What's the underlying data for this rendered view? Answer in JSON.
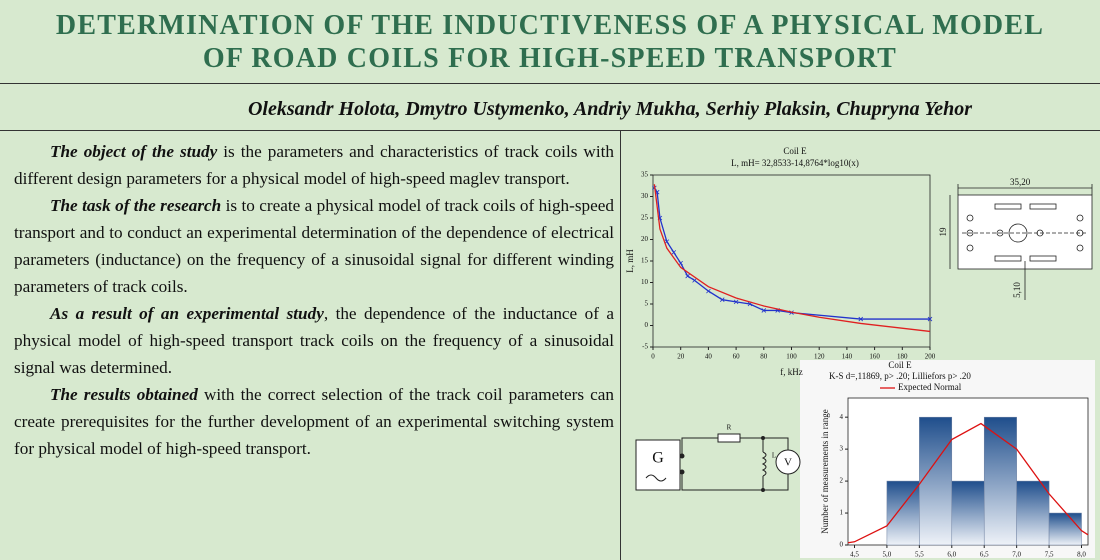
{
  "header": {
    "title_lines": [
      "DETERMINATION OF THE INDUCTIVENESS OF A PHYSICAL MODEL",
      "OF ROAD COILS FOR HIGH-SPEED TRANSPORT"
    ],
    "authors": "Oleksandr Holota, Dmytro Ustymenko, Andriy Mukha, Serhiy Plaksin, Chupryna Yehor"
  },
  "paragraphs": [
    {
      "lead": "The object of the study",
      "text": " is the parameters and characteristics of track coils with different design parameters for a physical model of high-speed maglev transport."
    },
    {
      "lead": "The task of the research",
      "text": " is to create a physical model of track coils of high-speed transport and to conduct an experimental determination of the dependence of electrical parameters (inductance) on the frequency of a sinusoidal signal for different winding parameters of track coils."
    },
    {
      "lead": "As a result of an experimental study",
      "text": ", the dependence of the inductance of a physical model of high-speed transport track coils on the frequency of a sinusoidal signal was determined."
    },
    {
      "lead": "The results obtained",
      "text": " with the correct selection of the track coil parameters can create prerequisites for the further development of an experimental switching system for physical model of high-speed transport."
    }
  ],
  "chart_data": [
    {
      "type": "line",
      "title": "Coil E",
      "subtitle": "L, mH= 32,8533-14,8764*log10(x)",
      "xlabel": "f, kHz",
      "ylabel": "L, mH",
      "xlim": [
        0,
        200
      ],
      "ylim": [
        -5,
        35
      ],
      "xticks": [
        0,
        20,
        40,
        60,
        80,
        100,
        120,
        140,
        160,
        180,
        200
      ],
      "yticks": [
        -5,
        0,
        5,
        10,
        15,
        20,
        25,
        30,
        35
      ],
      "series": [
        {
          "color": "#2233cc",
          "markers": true,
          "x": [
            1,
            3,
            5,
            10,
            15,
            20,
            25,
            30,
            40,
            50,
            60,
            70,
            80,
            90,
            100,
            150,
            200
          ],
          "values": [
            32,
            31,
            25,
            19.5,
            17,
            14.5,
            11.5,
            10.5,
            8,
            6,
            5.5,
            5,
            3.5,
            3.5,
            3,
            1.5,
            1.5
          ]
        },
        {
          "color": "#e02020",
          "markers": false,
          "x": [
            1,
            5,
            10,
            20,
            40,
            60,
            80,
            100,
            120,
            150,
            200
          ],
          "values": [
            32.85,
            22.45,
            17.98,
            13.5,
            9.02,
            6.4,
            4.54,
            3.1,
            1.92,
            0.48,
            -1.38
          ]
        }
      ]
    },
    {
      "type": "histogram",
      "title": "Coil E",
      "subtitle": "K-S d=,11869, p> .20; Lilliefors p> .20",
      "ylabel": "Number of measurements in range",
      "bins": [
        5.0,
        5.5,
        6.0,
        6.5,
        7.0,
        7.5,
        8.0
      ],
      "values": [
        2,
        4,
        2,
        4,
        2,
        1
      ],
      "xlim": [
        4.4,
        8.1
      ],
      "ylim": [
        0,
        4.6
      ],
      "xticks": [
        {
          "value": 4.5,
          "label": "4,5"
        },
        {
          "value": 5.0,
          "label": "5,0"
        },
        {
          "value": 5.5,
          "label": "5,5"
        },
        {
          "value": 6.0,
          "label": "6,0"
        },
        {
          "value": 6.5,
          "label": "6,5"
        },
        {
          "value": 7.0,
          "label": "7,0"
        },
        {
          "value": 7.5,
          "label": "7,5"
        },
        {
          "value": 8.0,
          "label": "8,0"
        }
      ],
      "yticks": [
        0,
        1,
        2,
        3,
        4
      ],
      "curve": {
        "name": "Expected Normal",
        "color": "#dd1111",
        "x": [
          4.4,
          4.5,
          5.0,
          5.5,
          6.0,
          6.45,
          7.0,
          7.5,
          8.0,
          8.1
        ],
        "values": [
          0.07,
          0.1,
          0.6,
          1.9,
          3.3,
          3.8,
          3.0,
          1.6,
          0.45,
          0.32
        ]
      }
    }
  ],
  "drawing": {
    "labels": [
      "35,20",
      "19",
      "5,10"
    ]
  },
  "circuit": {
    "labels": [
      "G",
      "R",
      "L",
      "V"
    ]
  }
}
